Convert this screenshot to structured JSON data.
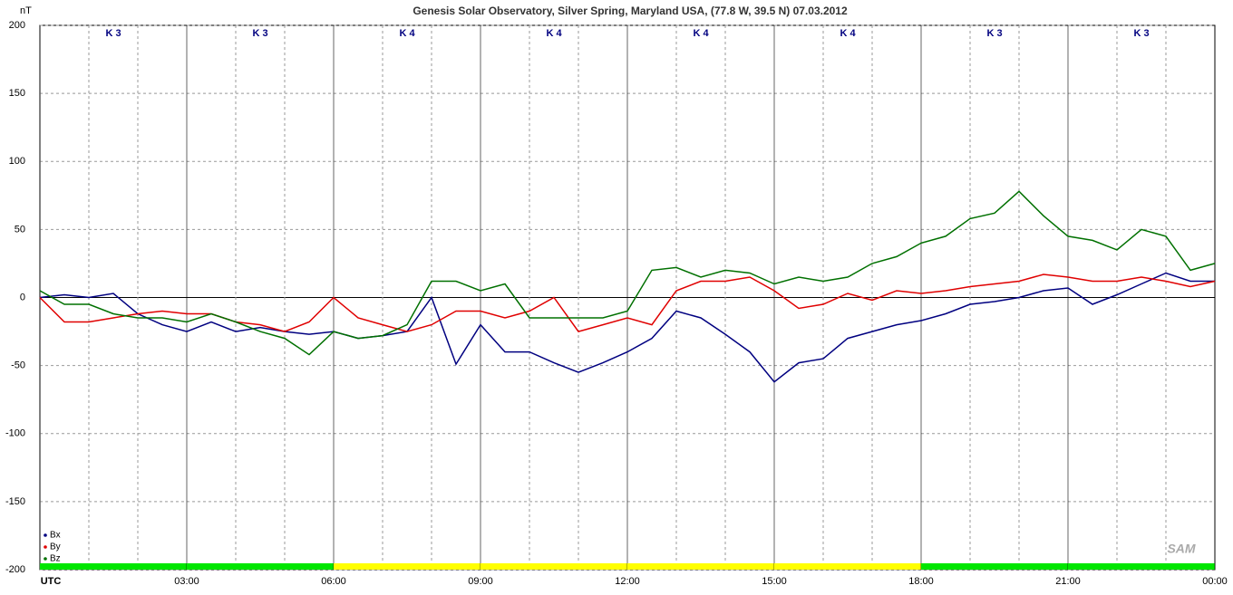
{
  "chart_data": {
    "type": "line",
    "title": "Genesis Solar Observatory, Silver Spring, Maryland USA, (77.8 W, 39.5 N)  07.03.2012",
    "y_label": "nT",
    "logo": "SAM",
    "k_indices": [
      "K 3",
      "K 3",
      "K 4",
      "K 4",
      "K 4",
      "K 4",
      "K 3",
      "K 3"
    ],
    "status_colors": [
      "#00e600",
      "#00e600",
      "#ffff00",
      "#ffff00",
      "#ffff00",
      "#ffff00",
      "#00e600",
      "#00e600"
    ],
    "xlim": [
      0,
      24
    ],
    "ylim": [
      -200,
      200
    ],
    "xticks": [
      {
        "value": 0,
        "label": "UTC"
      },
      {
        "value": 3,
        "label": "03:00"
      },
      {
        "value": 6,
        "label": "06:00"
      },
      {
        "value": 9,
        "label": "09:00"
      },
      {
        "value": 12,
        "label": "12:00"
      },
      {
        "value": 15,
        "label": "15:00"
      },
      {
        "value": 18,
        "label": "18:00"
      },
      {
        "value": 21,
        "label": "21:00"
      },
      {
        "value": 24,
        "label": "00:00"
      }
    ],
    "yticks": [
      200,
      150,
      100,
      50,
      0,
      -50,
      -100,
      -150,
      -200
    ],
    "grid": true,
    "x": [
      0,
      0.5,
      1,
      1.5,
      2,
      2.5,
      3,
      3.5,
      4,
      4.5,
      5,
      5.5,
      6,
      6.5,
      7,
      7.5,
      8,
      8.5,
      9,
      9.5,
      10,
      10.5,
      11,
      11.5,
      12,
      12.5,
      13,
      13.5,
      14,
      14.5,
      15,
      15.5,
      16,
      16.5,
      17,
      17.5,
      18,
      18.5,
      19,
      19.5,
      20,
      20.5,
      21,
      21.5,
      22,
      22.5,
      23,
      23.5,
      24
    ],
    "series": [
      {
        "name": "Bx",
        "color": "#000080",
        "values": [
          0,
          2,
          0,
          3,
          -12,
          -20,
          -25,
          -18,
          -25,
          -22,
          -25,
          -27,
          -25,
          -30,
          -28,
          -25,
          0,
          -49,
          -20,
          -40,
          -40,
          -48,
          -55,
          -48,
          -40,
          -30,
          -10,
          -15,
          -27,
          -40,
          -62,
          -48,
          -45,
          -30,
          -25,
          -20,
          -17,
          -12,
          -5,
          -3,
          0,
          5,
          7,
          -5,
          2,
          10,
          18,
          12,
          12
        ]
      },
      {
        "name": "By",
        "color": "#e00000",
        "values": [
          0,
          -18,
          -18,
          -15,
          -12,
          -10,
          -12,
          -12,
          -18,
          -20,
          -25,
          -18,
          0,
          -15,
          -20,
          -25,
          -20,
          -10,
          -10,
          -15,
          -10,
          0,
          -25,
          -20,
          -15,
          -20,
          5,
          12,
          12,
          15,
          5,
          -8,
          -5,
          3,
          -2,
          5,
          3,
          5,
          8,
          10,
          12,
          17,
          15,
          12,
          12,
          15,
          12,
          8,
          12
        ]
      },
      {
        "name": "Bz",
        "color": "#007000",
        "values": [
          5,
          -5,
          -5,
          -12,
          -15,
          -15,
          -18,
          -12,
          -18,
          -25,
          -30,
          -42,
          -25,
          -30,
          -28,
          -20,
          12,
          12,
          5,
          10,
          -15,
          -15,
          -15,
          -15,
          -10,
          20,
          22,
          15,
          20,
          18,
          10,
          15,
          12,
          15,
          25,
          30,
          40,
          45,
          58,
          62,
          78,
          60,
          45,
          42,
          35,
          50,
          45,
          20,
          25
        ]
      }
    ]
  }
}
